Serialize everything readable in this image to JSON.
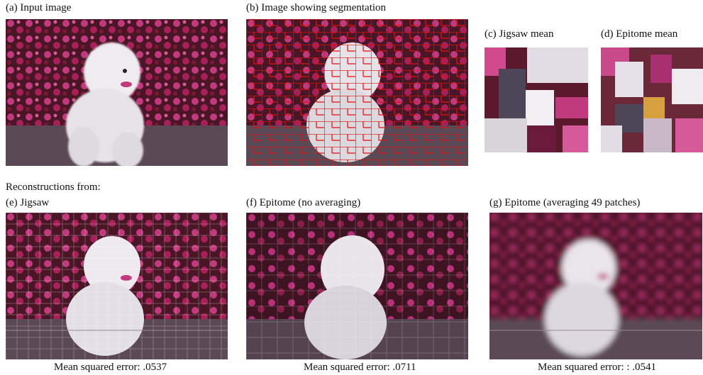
{
  "captions": {
    "a": "(a) Input image",
    "b": "(b) Image showing segmentation",
    "c": "(c) Jigsaw mean",
    "d": "(d) Epitome mean",
    "reconstructions_header": "Reconstructions from:",
    "e": "(e) Jigsaw",
    "f": "(f) Epitome (no averaging)",
    "g": "(g) Epitome (averaging 49 patches)"
  },
  "errors": {
    "e": "Mean squared error:  .0537",
    "f": "Mean squared error: .0711",
    "g": "Mean squared error: :  .0541"
  }
}
